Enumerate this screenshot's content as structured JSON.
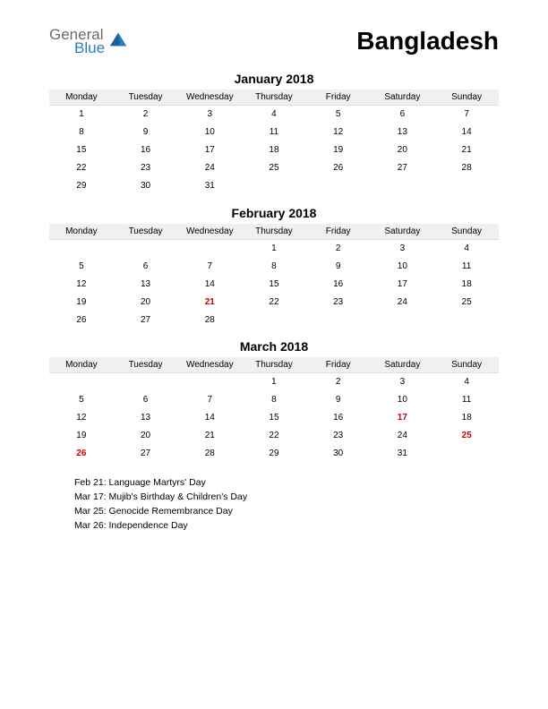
{
  "logo": {
    "text1": "General",
    "text2": "Blue"
  },
  "title": "Bangladesh",
  "day_headers": [
    "Monday",
    "Tuesday",
    "Wednesday",
    "Thursday",
    "Friday",
    "Saturday",
    "Sunday"
  ],
  "colors": {
    "holiday_text": "#cc0000",
    "header_bg": "#f0f0f0",
    "logo_gray": "#6a6a6a",
    "logo_blue": "#2a7eb8",
    "background": "#ffffff"
  },
  "fontsize": {
    "title": 28,
    "month_title": 14,
    "day_header": 10,
    "cell": 10,
    "holiday_list": 10.5
  },
  "months": [
    {
      "title": "January 2018",
      "weeks": [
        [
          "1",
          "2",
          "3",
          "4",
          "5",
          "6",
          "7"
        ],
        [
          "8",
          "9",
          "10",
          "11",
          "12",
          "13",
          "14"
        ],
        [
          "15",
          "16",
          "17",
          "18",
          "19",
          "20",
          "21"
        ],
        [
          "22",
          "23",
          "24",
          "25",
          "26",
          "27",
          "28"
        ],
        [
          "29",
          "30",
          "31",
          "",
          "",
          "",
          ""
        ]
      ],
      "holidays": []
    },
    {
      "title": "February 2018",
      "weeks": [
        [
          "",
          "",
          "",
          "1",
          "2",
          "3",
          "4"
        ],
        [
          "5",
          "6",
          "7",
          "8",
          "9",
          "10",
          "11"
        ],
        [
          "12",
          "13",
          "14",
          "15",
          "16",
          "17",
          "18"
        ],
        [
          "19",
          "20",
          "21",
          "22",
          "23",
          "24",
          "25"
        ],
        [
          "26",
          "27",
          "28",
          "",
          "",
          "",
          ""
        ]
      ],
      "holidays": [
        "21"
      ]
    },
    {
      "title": "March 2018",
      "weeks": [
        [
          "",
          "",
          "",
          "1",
          "2",
          "3",
          "4"
        ],
        [
          "5",
          "6",
          "7",
          "8",
          "9",
          "10",
          "11"
        ],
        [
          "12",
          "13",
          "14",
          "15",
          "16",
          "17",
          "18"
        ],
        [
          "19",
          "20",
          "21",
          "22",
          "23",
          "24",
          "25"
        ],
        [
          "26",
          "27",
          "28",
          "29",
          "30",
          "31",
          ""
        ]
      ],
      "holidays": [
        "17",
        "25",
        "26"
      ]
    }
  ],
  "holiday_list": [
    "Feb 21: Language Martyrs' Day",
    "Mar 17: Mujib's Birthday & Children's Day",
    "Mar 25: Genocide Remembrance Day",
    "Mar 26: Independence Day"
  ]
}
